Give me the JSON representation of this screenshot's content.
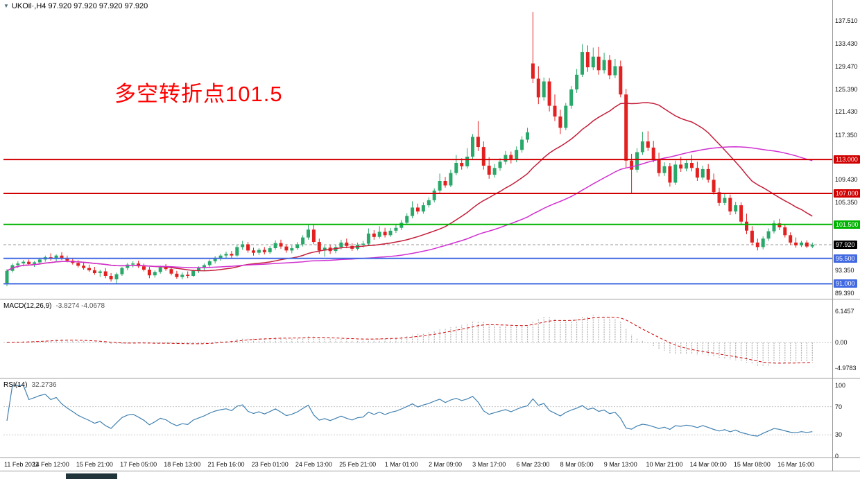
{
  "window": {
    "title": "UKOil·,H4 97.920 97.920 97.920 97.920",
    "dropdown_icon": "▼"
  },
  "annotation": {
    "text": "多空转折点101.5",
    "color": "#ff0000"
  },
  "colors": {
    "up": "#2aa869",
    "down": "#e32020",
    "background": "#ffffff",
    "separator": "#9b9b9b",
    "axis_text": "#111111"
  },
  "chart_data": [
    {
      "type": "candlestick",
      "symbol": "UKOil",
      "timeframe": "H4",
      "title": "UKOil H4 candlestick chart",
      "price_range": [
        88.6,
        139.5
      ],
      "price_ticks": [
        "137.510",
        "133.430",
        "129.470",
        "125.390",
        "121.430",
        "117.350",
        "109.430",
        "105.350",
        "93.350",
        "89.390"
      ],
      "time_labels": [
        "11 Feb 2022",
        "14 Feb 12:00",
        "15 Feb 21:00",
        "17 Feb 05:00",
        "18 Feb 13:00",
        "21 Feb 16:00",
        "23 Feb 01:00",
        "24 Feb 13:00",
        "25 Feb 21:00",
        "1 Mar 01:00",
        "2 Mar 09:00",
        "3 Mar 17:00",
        "6 Mar 23:00",
        "8 Mar 05:00",
        "9 Mar 13:00",
        "10 Mar 21:00",
        "14 Mar 00:00",
        "15 Mar 08:00",
        "16 Mar 16:00"
      ],
      "label_every": 8,
      "hlines": [
        {
          "value": 113.0,
          "label": "113.000",
          "color": "#d10000"
        },
        {
          "value": 107.0,
          "label": "107.000",
          "color": "#d10000"
        },
        {
          "value": 101.5,
          "label": "101.500",
          "color": "#00b300"
        },
        {
          "value": 95.5,
          "label": "95.500",
          "color": "#4169e1"
        },
        {
          "value": 91.0,
          "label": "91.000",
          "color": "#4169e1"
        }
      ],
      "current_price": {
        "value": 97.92,
        "label": "97.920",
        "badge_color": "#000000"
      },
      "ma": [
        {
          "name": "fast-ma",
          "period": 24,
          "color": "#c41e3a"
        },
        {
          "name": "slow-ma",
          "period": 60,
          "color": "#d12fd1"
        }
      ],
      "ohlc": [
        [
          91.0,
          93.6,
          90.6,
          93.3
        ],
        [
          93.3,
          94.6,
          93.0,
          94.3
        ],
        [
          94.3,
          95.0,
          93.8,
          94.6
        ],
        [
          94.6,
          95.2,
          94.1,
          94.9
        ],
        [
          94.9,
          95.3,
          94.3,
          94.5
        ],
        [
          94.5,
          95.0,
          94.0,
          94.8
        ],
        [
          94.8,
          95.6,
          94.4,
          95.3
        ],
        [
          95.3,
          96.0,
          94.9,
          95.7
        ],
        [
          95.7,
          96.4,
          95.1,
          95.4
        ],
        [
          95.4,
          96.2,
          94.9,
          96.0
        ],
        [
          96.0,
          96.6,
          95.2,
          95.5
        ],
        [
          95.5,
          96.0,
          94.8,
          95.1
        ],
        [
          95.1,
          95.6,
          94.4,
          94.7
        ],
        [
          94.7,
          95.2,
          93.9,
          94.2
        ],
        [
          94.2,
          94.8,
          93.5,
          93.8
        ],
        [
          93.8,
          94.4,
          93.1,
          93.4
        ],
        [
          93.4,
          94.0,
          92.6,
          92.9
        ],
        [
          92.9,
          93.5,
          92.2,
          93.2
        ],
        [
          93.2,
          93.8,
          92.0,
          92.4
        ],
        [
          92.4,
          92.9,
          91.4,
          91.8
        ],
        [
          91.8,
          93.0,
          90.9,
          92.7
        ],
        [
          92.7,
          94.0,
          92.4,
          93.8
        ],
        [
          93.8,
          94.7,
          93.4,
          94.4
        ],
        [
          94.4,
          95.0,
          93.9,
          94.6
        ],
        [
          94.6,
          95.1,
          93.8,
          94.1
        ],
        [
          94.1,
          94.6,
          93.2,
          93.5
        ],
        [
          93.5,
          94.0,
          92.0,
          92.5
        ],
        [
          92.5,
          93.4,
          92.1,
          93.1
        ],
        [
          93.1,
          94.2,
          92.8,
          93.9
        ],
        [
          93.9,
          94.5,
          93.3,
          93.6
        ],
        [
          93.6,
          94.0,
          92.5,
          92.8
        ],
        [
          92.8,
          93.3,
          91.9,
          92.2
        ],
        [
          92.2,
          93.0,
          91.8,
          92.6
        ],
        [
          92.6,
          93.2,
          92.0,
          92.4
        ],
        [
          92.4,
          93.5,
          92.2,
          93.3
        ],
        [
          93.3,
          94.1,
          92.9,
          93.8
        ],
        [
          93.8,
          94.6,
          93.4,
          94.3
        ],
        [
          94.3,
          95.3,
          94.0,
          95.0
        ],
        [
          95.0,
          95.9,
          94.6,
          95.6
        ],
        [
          95.6,
          96.3,
          95.1,
          96.0
        ],
        [
          96.0,
          96.7,
          95.5,
          96.3
        ],
        [
          96.3,
          96.8,
          95.6,
          96.0
        ],
        [
          96.0,
          97.9,
          95.8,
          97.5
        ],
        [
          97.5,
          98.6,
          97.0,
          98.0
        ],
        [
          98.0,
          98.4,
          96.5,
          96.9
        ],
        [
          96.9,
          97.4,
          96.0,
          96.5
        ],
        [
          96.5,
          97.3,
          96.1,
          97.0
        ],
        [
          97.0,
          97.5,
          96.2,
          96.6
        ],
        [
          96.6,
          97.7,
          96.3,
          97.3
        ],
        [
          97.3,
          98.7,
          97.0,
          98.2
        ],
        [
          98.2,
          98.8,
          97.2,
          97.6
        ],
        [
          97.6,
          98.0,
          96.5,
          96.9
        ],
        [
          96.9,
          97.8,
          96.4,
          97.3
        ],
        [
          97.3,
          98.4,
          97.0,
          98.0
        ],
        [
          98.0,
          99.6,
          97.6,
          99.2
        ],
        [
          99.2,
          101.4,
          98.8,
          100.6
        ],
        [
          100.6,
          101.5,
          98.0,
          98.4
        ],
        [
          98.4,
          99.0,
          96.3,
          96.9
        ],
        [
          96.9,
          97.8,
          95.8,
          97.4
        ],
        [
          97.4,
          97.9,
          96.3,
          96.8
        ],
        [
          96.8,
          97.9,
          96.4,
          97.5
        ],
        [
          97.5,
          98.8,
          97.1,
          98.3
        ],
        [
          98.3,
          99.0,
          97.3,
          97.7
        ],
        [
          97.7,
          98.2,
          96.8,
          97.2
        ],
        [
          97.2,
          98.3,
          96.9,
          97.9
        ],
        [
          97.9,
          98.6,
          97.4,
          98.1
        ],
        [
          98.1,
          100.8,
          97.8,
          99.9
        ],
        [
          99.9,
          100.5,
          98.8,
          99.3
        ],
        [
          99.3,
          101.2,
          99.0,
          100.2
        ],
        [
          100.2,
          100.9,
          99.2,
          99.6
        ],
        [
          99.6,
          100.9,
          99.3,
          100.4
        ],
        [
          100.4,
          101.4,
          100.0,
          100.9
        ],
        [
          100.9,
          102.3,
          100.5,
          101.8
        ],
        [
          101.8,
          103.5,
          101.4,
          103.0
        ],
        [
          103.0,
          105.6,
          102.6,
          104.5
        ],
        [
          104.5,
          105.2,
          103.3,
          103.8
        ],
        [
          103.8,
          105.4,
          103.4,
          104.9
        ],
        [
          104.9,
          106.3,
          104.5,
          105.8
        ],
        [
          105.8,
          107.9,
          105.4,
          107.5
        ],
        [
          107.5,
          110.5,
          107.0,
          109.2
        ],
        [
          109.2,
          109.9,
          108.0,
          108.4
        ],
        [
          108.4,
          111.2,
          108.1,
          110.6
        ],
        [
          110.6,
          113.8,
          110.2,
          112.4
        ],
        [
          112.4,
          113.2,
          111.2,
          111.8
        ],
        [
          111.8,
          115.0,
          111.4,
          113.5
        ],
        [
          113.5,
          117.5,
          113.1,
          117.0
        ],
        [
          117.0,
          119.8,
          114.5,
          115.2
        ],
        [
          115.2,
          116.2,
          111.2,
          111.9
        ],
        [
          111.9,
          113.4,
          109.6,
          110.3
        ],
        [
          110.3,
          112.2,
          109.8,
          111.5
        ],
        [
          111.5,
          113.2,
          111.0,
          112.6
        ],
        [
          112.6,
          114.5,
          112.1,
          113.8
        ],
        [
          113.8,
          114.4,
          112.3,
          112.9
        ],
        [
          112.9,
          115.3,
          112.5,
          114.7
        ],
        [
          114.7,
          117.1,
          114.2,
          116.5
        ],
        [
          116.5,
          118.6,
          116.0,
          117.8
        ],
        [
          130.0,
          139.1,
          126.5,
          127.3
        ],
        [
          127.3,
          129.5,
          122.8,
          124.0
        ],
        [
          124.0,
          127.5,
          123.4,
          126.8
        ],
        [
          126.8,
          127.4,
          121.5,
          122.5
        ],
        [
          122.5,
          124.5,
          119.8,
          120.6
        ],
        [
          120.6,
          121.8,
          117.5,
          118.6
        ],
        [
          118.6,
          123.0,
          118.2,
          122.5
        ],
        [
          122.5,
          126.0,
          122.0,
          125.4
        ],
        [
          125.4,
          129.0,
          124.8,
          128.0
        ],
        [
          128.0,
          133.4,
          127.6,
          132.0
        ],
        [
          132.0,
          133.2,
          128.5,
          129.3
        ],
        [
          129.3,
          132.8,
          128.8,
          131.2
        ],
        [
          131.2,
          132.9,
          128.0,
          128.8
        ],
        [
          128.8,
          131.9,
          128.2,
          130.6
        ],
        [
          130.6,
          131.5,
          127.2,
          127.9
        ],
        [
          127.9,
          130.8,
          127.4,
          129.5
        ],
        [
          129.5,
          130.5,
          124.0,
          124.5
        ],
        [
          124.5,
          125.5,
          111.5,
          112.8
        ],
        [
          112.8,
          114.0,
          106.9,
          111.2
        ],
        [
          111.2,
          115.0,
          110.7,
          114.3
        ],
        [
          114.3,
          117.9,
          113.8,
          116.2
        ],
        [
          116.2,
          118.0,
          114.5,
          115.1
        ],
        [
          115.1,
          116.3,
          112.5,
          113.0
        ],
        [
          113.0,
          114.2,
          110.0,
          110.6
        ],
        [
          110.6,
          112.5,
          110.1,
          111.8
        ],
        [
          111.8,
          112.4,
          108.2,
          108.9
        ],
        [
          108.9,
          112.8,
          108.5,
          112.1
        ],
        [
          112.1,
          113.5,
          110.8,
          111.4
        ],
        [
          111.4,
          112.9,
          110.9,
          112.4
        ],
        [
          112.4,
          113.8,
          110.9,
          111.5
        ],
        [
          111.5,
          112.6,
          109.2,
          109.8
        ],
        [
          109.8,
          111.9,
          109.4,
          111.3
        ],
        [
          111.3,
          112.2,
          108.9,
          109.4
        ],
        [
          109.4,
          110.5,
          106.8,
          107.2
        ],
        [
          107.2,
          108.0,
          104.8,
          105.3
        ],
        [
          105.3,
          106.9,
          104.9,
          106.2
        ],
        [
          106.2,
          106.8,
          103.2,
          103.8
        ],
        [
          103.8,
          105.5,
          103.3,
          104.9
        ],
        [
          104.9,
          105.4,
          101.5,
          102.0
        ],
        [
          102.0,
          103.4,
          99.8,
          100.4
        ],
        [
          100.4,
          101.2,
          97.8,
          98.3
        ],
        [
          98.3,
          99.0,
          96.9,
          97.5
        ],
        [
          97.5,
          99.4,
          97.1,
          99.0
        ],
        [
          99.0,
          100.8,
          98.6,
          100.3
        ],
        [
          100.3,
          102.2,
          99.9,
          101.7
        ],
        [
          101.7,
          102.5,
          100.5,
          101.0
        ],
        [
          101.0,
          101.6,
          99.2,
          99.6
        ],
        [
          99.6,
          100.1,
          97.9,
          98.3
        ],
        [
          98.3,
          99.2,
          97.4,
          97.8
        ],
        [
          97.8,
          98.6,
          97.5,
          98.3
        ],
        [
          98.3,
          98.7,
          97.3,
          97.6
        ],
        [
          97.6,
          98.3,
          97.3,
          97.92
        ]
      ]
    },
    {
      "type": "bar",
      "name": "MACD",
      "label": "MACD(12,26,9)",
      "values_label": "-3.8274 -4.0678",
      "params": [
        12,
        26,
        9
      ],
      "current": {
        "macd": -3.8274,
        "signal": -4.0678
      },
      "ticks": [
        "6.1457",
        "0.00",
        "-4.9783"
      ],
      "tick_values": [
        6.1457,
        0,
        -4.9783
      ],
      "range": [
        -6.8,
        8.2
      ],
      "histogram_color": "#b2b2b2",
      "signal_color": "#d00000"
    },
    {
      "type": "line",
      "name": "RSI",
      "label": "RSI(14)",
      "values_label": "32.2736",
      "period": 14,
      "current": 32.2736,
      "ticks": [
        "100",
        "70",
        "30",
        "0"
      ],
      "tick_values": [
        100,
        70,
        30,
        0
      ],
      "levels": [
        70,
        30
      ],
      "color": "#4080b0"
    }
  ]
}
